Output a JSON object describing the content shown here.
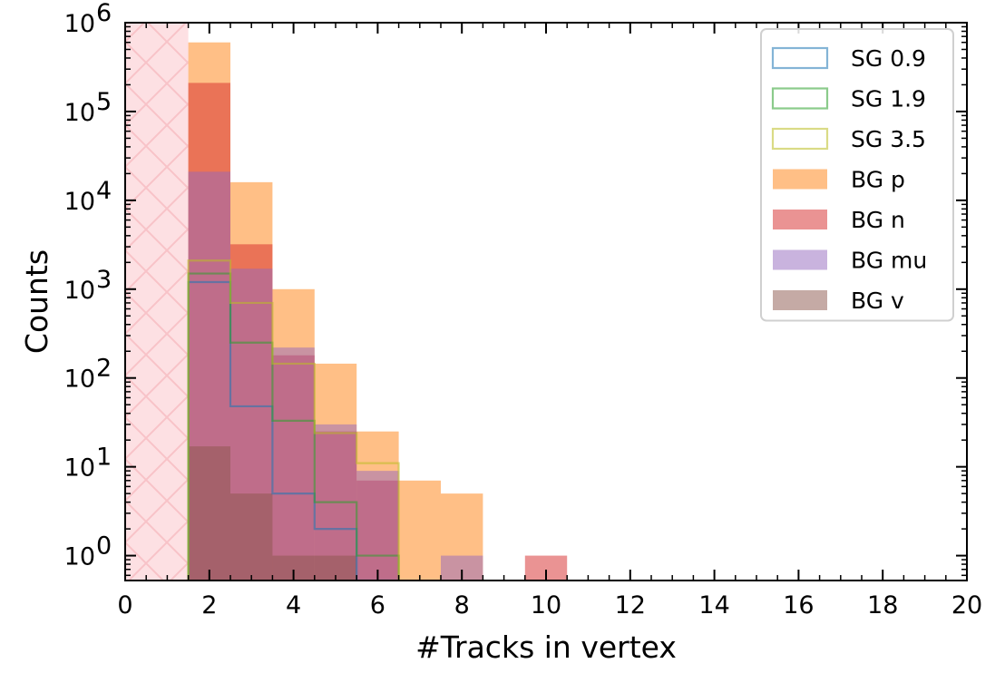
{
  "chart_data": {
    "type": "histogram",
    "xlabel": "#Tracks in vertex",
    "ylabel": "Counts",
    "xlim": [
      0,
      20
    ],
    "ylim_log10": [
      -0.28,
      6.0
    ],
    "yscale": "log",
    "xticks": [
      0,
      2,
      4,
      6,
      8,
      10,
      12,
      14,
      16,
      18,
      20
    ],
    "yticks": [
      {
        "exp": 0,
        "base": "10",
        "sup": "0"
      },
      {
        "exp": 1,
        "base": "10",
        "sup": "1"
      },
      {
        "exp": 2,
        "base": "10",
        "sup": "2"
      },
      {
        "exp": 3,
        "base": "10",
        "sup": "3"
      },
      {
        "exp": 4,
        "base": "10",
        "sup": "4"
      },
      {
        "exp": 5,
        "base": "10",
        "sup": "5"
      },
      {
        "exp": 6,
        "base": "10",
        "sup": "6"
      }
    ],
    "excluded_region": {
      "x": [
        0,
        1.5
      ],
      "color": "#fde0e3",
      "hatch": "#f8c3c8"
    },
    "legend_position": "top-right",
    "series": [
      {
        "name": "SG 0.9",
        "style": "step",
        "color": "#1f77b4",
        "alpha": 0.55,
        "bins": [
          [
            1.5,
            2.5,
            1200
          ],
          [
            2.5,
            3.5,
            48
          ],
          [
            3.5,
            4.5,
            5
          ],
          [
            4.5,
            5.5,
            2
          ],
          [
            5.5,
            6.5,
            0
          ]
        ]
      },
      {
        "name": "SG 1.9",
        "style": "step",
        "color": "#2ca02c",
        "alpha": 0.55,
        "bins": [
          [
            1.5,
            2.5,
            1500
          ],
          [
            2.5,
            3.5,
            250
          ],
          [
            3.5,
            4.5,
            33
          ],
          [
            4.5,
            5.5,
            4
          ],
          [
            5.5,
            6.5,
            1
          ]
        ]
      },
      {
        "name": "SG 3.5",
        "style": "step",
        "color": "#bcbd22",
        "alpha": 0.55,
        "bins": [
          [
            1.5,
            2.5,
            2100
          ],
          [
            2.5,
            3.5,
            700
          ],
          [
            3.5,
            4.5,
            145
          ],
          [
            4.5,
            5.5,
            24
          ],
          [
            5.5,
            6.5,
            11
          ]
        ]
      },
      {
        "name": "BG p",
        "style": "fill",
        "color": "#ff7f0e",
        "alpha": 0.5,
        "bins": [
          [
            1.5,
            2.5,
            600000
          ],
          [
            2.5,
            3.5,
            16000
          ],
          [
            3.5,
            4.5,
            1000
          ],
          [
            4.5,
            5.5,
            145
          ],
          [
            5.5,
            6.5,
            25
          ],
          [
            6.5,
            7.5,
            7
          ],
          [
            7.5,
            8.5,
            5
          ]
        ]
      },
      {
        "name": "BG n",
        "style": "fill",
        "color": "#d62728",
        "alpha": 0.5,
        "bins": [
          [
            1.5,
            2.5,
            210000
          ],
          [
            2.5,
            3.5,
            3200
          ],
          [
            3.5,
            4.5,
            180
          ],
          [
            4.5,
            5.5,
            25
          ],
          [
            5.5,
            6.5,
            7
          ],
          [
            9.5,
            10.5,
            1
          ]
        ]
      },
      {
        "name": "BG mu",
        "style": "fill",
        "color": "#9467bd",
        "alpha": 0.5,
        "bins": [
          [
            1.5,
            2.5,
            21000
          ],
          [
            2.5,
            3.5,
            1700
          ],
          [
            3.5,
            4.5,
            220
          ],
          [
            4.5,
            5.5,
            30
          ],
          [
            5.5,
            6.5,
            9
          ],
          [
            7.5,
            8.5,
            1
          ]
        ]
      },
      {
        "name": "BG v",
        "style": "fill",
        "color": "#8c564b",
        "alpha": 0.5,
        "bins": [
          [
            1.5,
            2.5,
            17
          ],
          [
            2.5,
            3.5,
            5
          ],
          [
            3.5,
            4.5,
            1
          ],
          [
            4.5,
            5.5,
            1
          ]
        ]
      }
    ]
  }
}
